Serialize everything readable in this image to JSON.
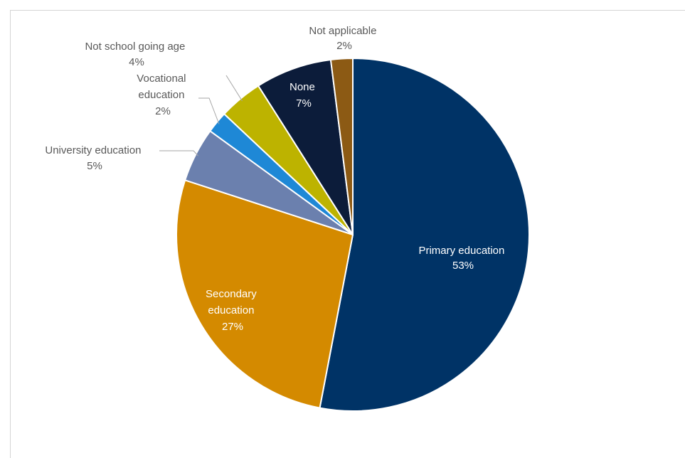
{
  "chart_data": {
    "type": "pie",
    "title": "",
    "legend": "none",
    "slices": [
      {
        "label": "Primary education",
        "value_label": "53%",
        "value": 53,
        "color": "#003366"
      },
      {
        "label": "Secondary education",
        "value_label": "27%",
        "value": 27,
        "color": "#D48A00"
      },
      {
        "label": "University education",
        "value_label": "5%",
        "value": 5,
        "color": "#6B80AE"
      },
      {
        "label": "Vocational education",
        "value_label": "2%",
        "value": 2,
        "color": "#1E88D6"
      },
      {
        "label": "Not school going age",
        "value_label": "4%",
        "value": 4,
        "color": "#BDB300"
      },
      {
        "label": "None",
        "value_label": "7%",
        "value": 7,
        "color": "#0C1C3A"
      },
      {
        "label": "Not applicable",
        "value_label": "2%",
        "value": 2,
        "color": "#8C5A14"
      }
    ]
  }
}
